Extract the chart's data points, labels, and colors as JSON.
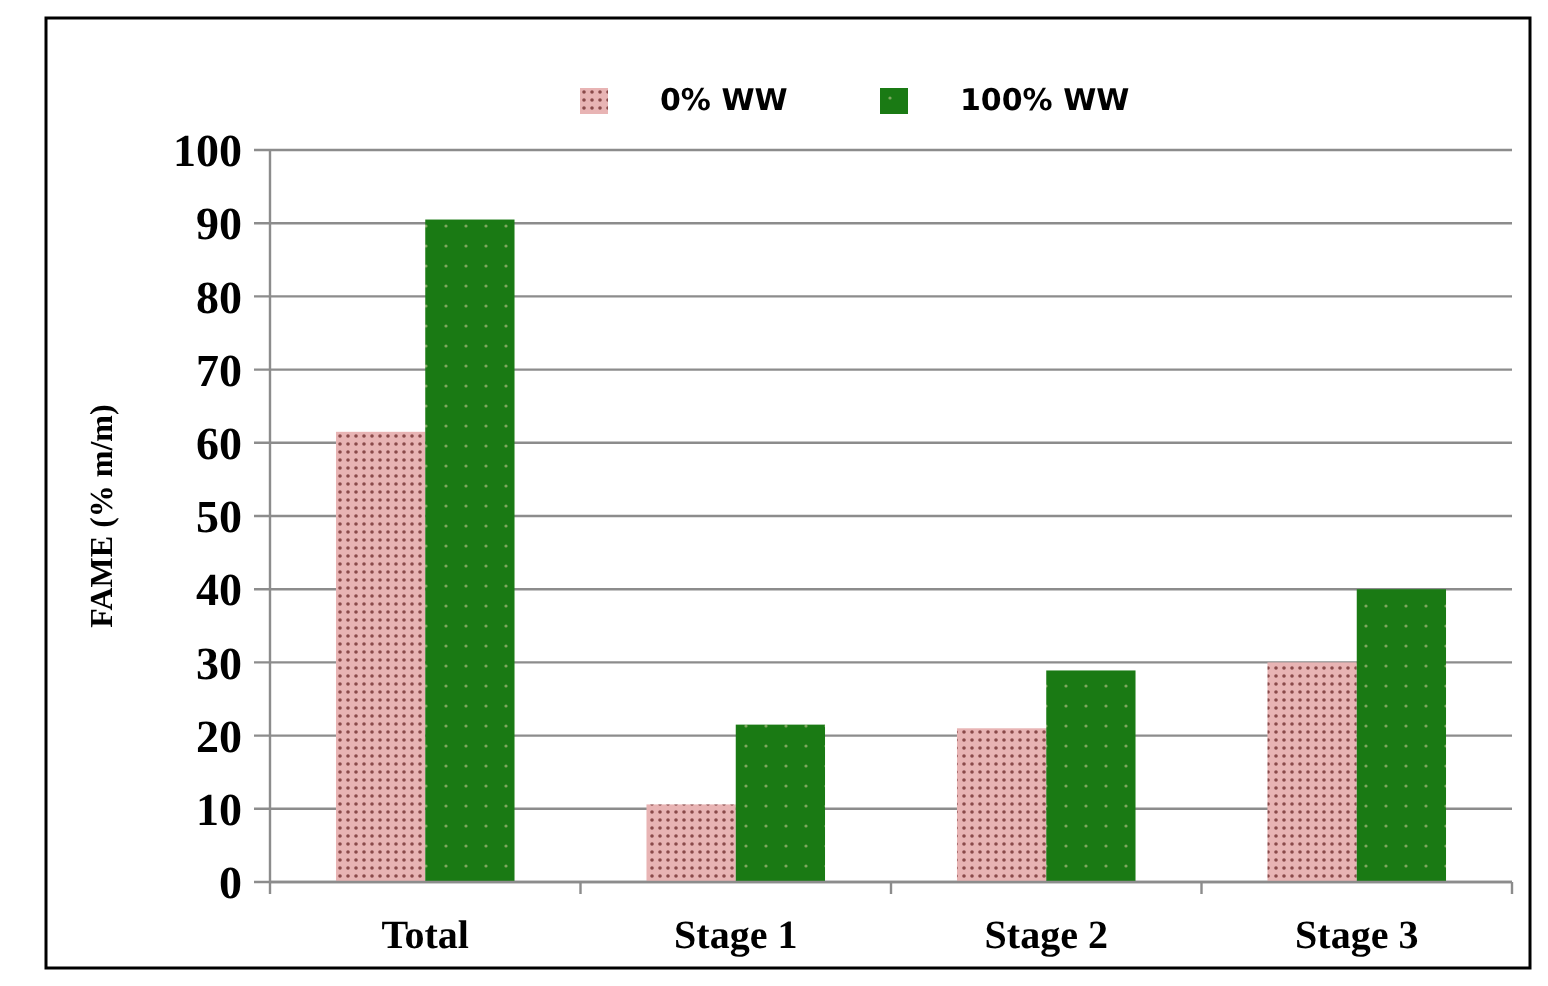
{
  "chart_data": {
    "type": "bar",
    "ylabel": "FAME (% m/m)",
    "categories": [
      "Total",
      "Stage 1",
      "Stage 2",
      "Stage 3"
    ],
    "series": [
      {
        "name": "0% WW",
        "color": "#e8b4b4",
        "values": [
          61.5,
          10.6,
          21,
          30
        ]
      },
      {
        "name": "100% WW",
        "color": "#1a7a14",
        "values": [
          90.5,
          21.5,
          28.9,
          40
        ]
      }
    ],
    "ylim": [
      0,
      100
    ],
    "yticks": [
      0,
      10,
      20,
      30,
      40,
      50,
      60,
      70,
      80,
      90,
      100
    ],
    "grid": "y",
    "legend": "top"
  }
}
